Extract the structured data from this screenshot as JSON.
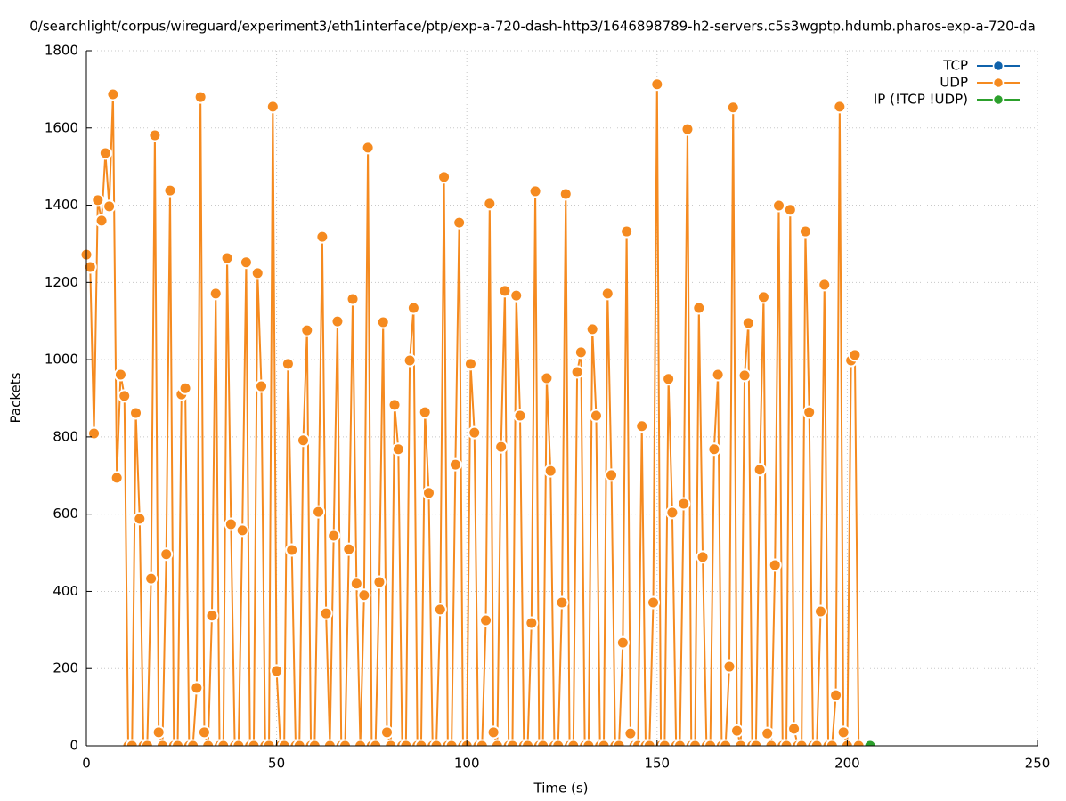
{
  "chart_data": {
    "type": "line",
    "title": "0/searchlight/corpus/wireguard/experiment3/eth1interface/ptp/exp-a-720-dash-http3/1646898789-h2-servers.c5s3wgptp.hdumb.pharos-exp-a-720-da",
    "xlabel": "Time (s)",
    "ylabel": "Packets",
    "xlim": [
      0,
      250
    ],
    "xticks": [
      0,
      50,
      100,
      150,
      200,
      250
    ],
    "ylim": [
      0,
      1800
    ],
    "yticks": [
      0,
      200,
      400,
      600,
      800,
      1000,
      1200,
      1400,
      1600,
      1800
    ],
    "grid": true,
    "legend": "top-right",
    "series": [
      {
        "name": "TCP",
        "color": "#0f62ab",
        "x": [],
        "values": []
      },
      {
        "name": "UDP",
        "color": "#f58a1f",
        "x": [
          0,
          1,
          2,
          3,
          4,
          5,
          6,
          7,
          8,
          9,
          10,
          11,
          12,
          13,
          14,
          15,
          16,
          17,
          18,
          19,
          20,
          21,
          22,
          23,
          24,
          25,
          26,
          27,
          28,
          29,
          30,
          31,
          32,
          33,
          34,
          35,
          36,
          37,
          38,
          39,
          40,
          41,
          42,
          43,
          44,
          45,
          46,
          47,
          48,
          49,
          50,
          51,
          52,
          53,
          54,
          55,
          56,
          57,
          58,
          59,
          60,
          61,
          62,
          63,
          64,
          65,
          66,
          67,
          68,
          69,
          70,
          71,
          72,
          73,
          74,
          75,
          76,
          77,
          78,
          79,
          80,
          81,
          82,
          83,
          84,
          85,
          86,
          87,
          88,
          89,
          90,
          91,
          92,
          93,
          94,
          95,
          96,
          97,
          98,
          99,
          100,
          101,
          102,
          103,
          104,
          105,
          106,
          107,
          108,
          109,
          110,
          111,
          112,
          113,
          114,
          115,
          116,
          117,
          118,
          119,
          120,
          121,
          122,
          123,
          124,
          125,
          126,
          127,
          128,
          129,
          130,
          131,
          132,
          133,
          134,
          135,
          136,
          137,
          138,
          139,
          140,
          141,
          142,
          143,
          144,
          145,
          146,
          147,
          148,
          149,
          150,
          151,
          152,
          153,
          154,
          155,
          156,
          157,
          158,
          159,
          160,
          161,
          162,
          163,
          164,
          165,
          166,
          167,
          168,
          169,
          170,
          171,
          172,
          173,
          174,
          175,
          176,
          177,
          178,
          179,
          180,
          181,
          182,
          183,
          184,
          185,
          186,
          187,
          188,
          189,
          190,
          191,
          192,
          193,
          194,
          195,
          196,
          197,
          198,
          199,
          200,
          201,
          202,
          203
        ],
        "values": [
          1272,
          1240,
          809,
          1413,
          1360,
          1535,
          1397,
          1687,
          694,
          961,
          906,
          0,
          0,
          862,
          588,
          0,
          0,
          433,
          1581,
          35,
          0,
          496,
          1438,
          0,
          0,
          910,
          926,
          0,
          0,
          150,
          1680,
          35,
          0,
          337,
          1171,
          0,
          0,
          1263,
          574,
          0,
          0,
          558,
          1252,
          0,
          0,
          1224,
          931,
          0,
          0,
          1655,
          194,
          0,
          0,
          989,
          507,
          0,
          0,
          791,
          1076,
          0,
          0,
          606,
          1318,
          343,
          0,
          544,
          1099,
          0,
          0,
          509,
          1157,
          420,
          0,
          390,
          1549,
          0,
          0,
          424,
          1097,
          35,
          0,
          883,
          768,
          0,
          0,
          998,
          1134,
          0,
          0,
          864,
          655,
          0,
          0,
          353,
          1473,
          0,
          0,
          728,
          1355,
          0,
          0,
          989,
          811,
          0,
          0,
          325,
          1404,
          35,
          0,
          774,
          1178,
          0,
          0,
          1166,
          855,
          0,
          0,
          318,
          1436,
          0,
          0,
          952,
          712,
          0,
          0,
          371,
          1429,
          0,
          0,
          968,
          1019,
          0,
          0,
          1079,
          855,
          0,
          0,
          1171,
          701,
          0,
          0,
          267,
          1332,
          32,
          0,
          0,
          828,
          0,
          0,
          371,
          1713,
          0,
          0,
          950,
          604,
          0,
          0,
          627,
          1597,
          0,
          0,
          1134,
          489,
          0,
          0,
          768,
          961,
          0,
          0,
          205,
          1653,
          39,
          0,
          959,
          1095,
          0,
          0,
          715,
          1162,
          32,
          0,
          468,
          1399,
          0,
          0,
          1388,
          44,
          0,
          0,
          1332,
          864,
          0,
          0,
          348,
          1194,
          0,
          0,
          131,
          1655,
          35,
          0,
          998,
          1012,
          0
        ]
      },
      {
        "name": "IP (!TCP  !UDP)",
        "color": "#2ca02c",
        "x": [
          206
        ],
        "values": [
          0
        ]
      }
    ]
  }
}
